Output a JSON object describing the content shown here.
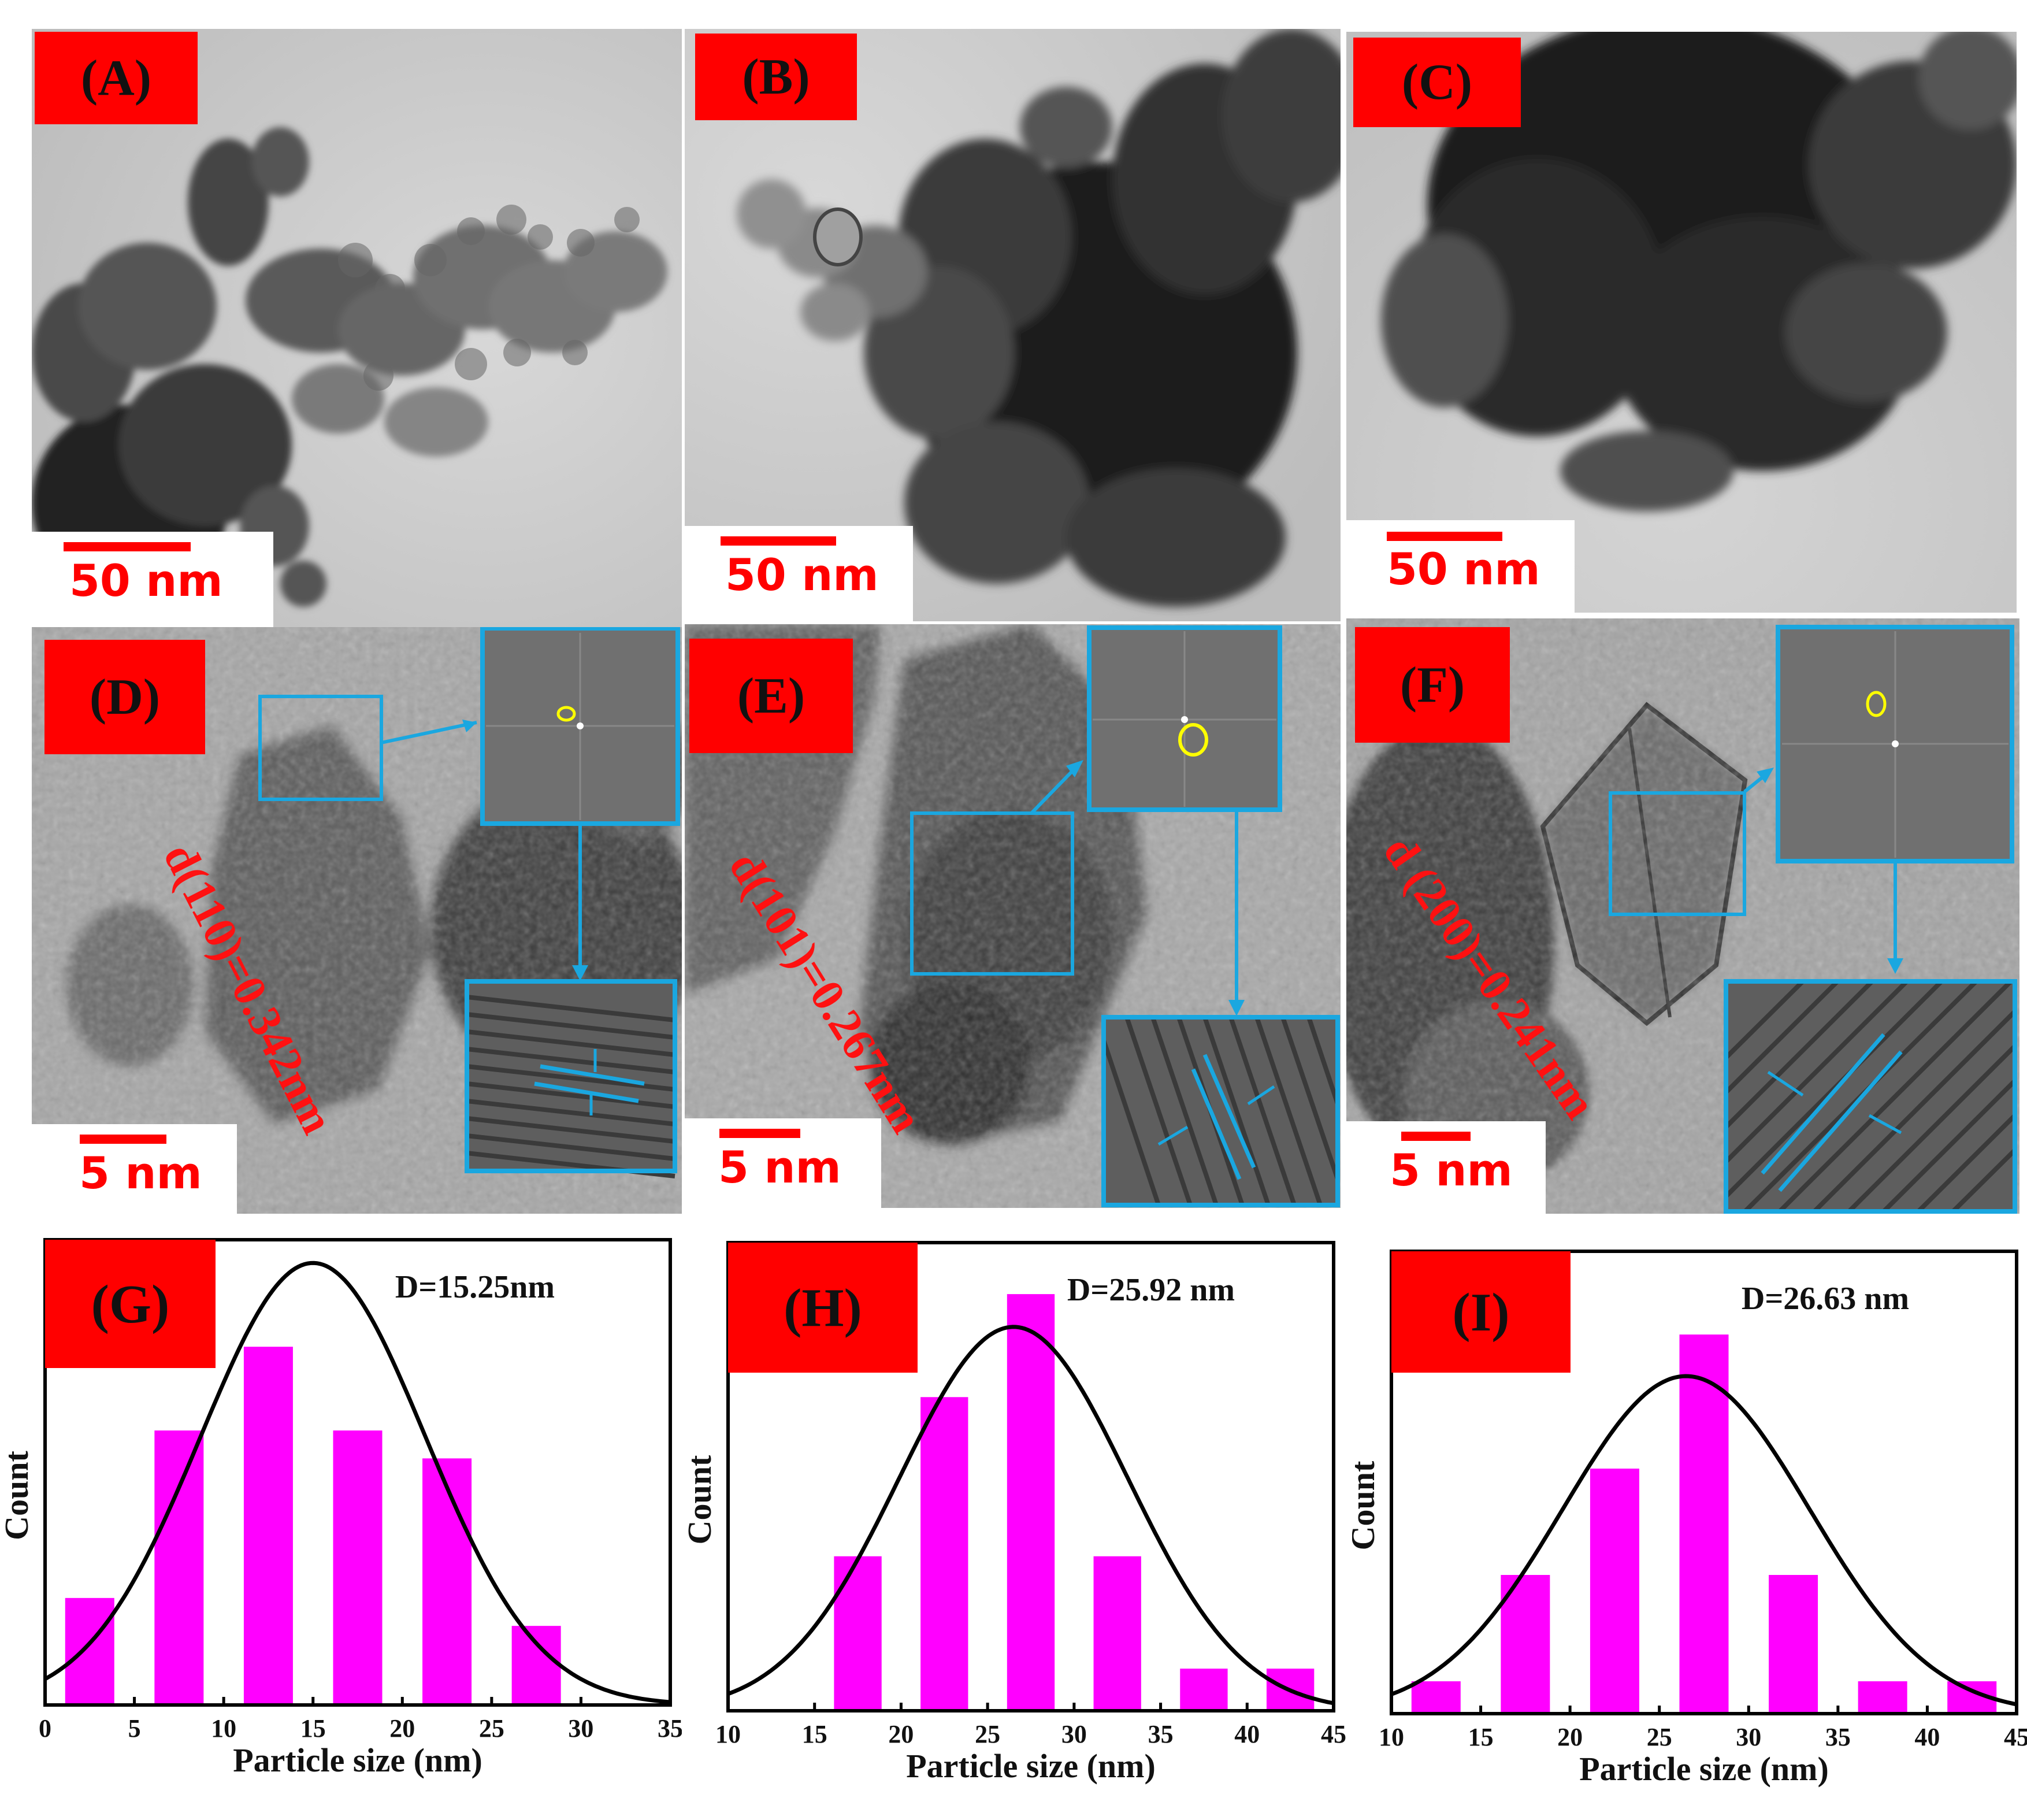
{
  "panels": {
    "A": {
      "label": "(A)",
      "scale": "50 nm"
    },
    "B": {
      "label": "(B)",
      "scale": "50 nm"
    },
    "C": {
      "label": "(C)",
      "scale": "50 nm"
    },
    "D": {
      "label": "(D)",
      "scale": "5 nm",
      "dspacing": "d(110)=0.342nm"
    },
    "E": {
      "label": "(E)",
      "scale": "5 nm",
      "dspacing": "d(101)=0.267nm"
    },
    "F": {
      "label": "(F)",
      "scale": "5 nm",
      "dspacing": "d (200)=0.241nm"
    }
  },
  "colors": {
    "label_bg": "#ff0000",
    "scale": "#ff0000",
    "inset_frame": "#1aa7e0",
    "fft_ring": "#ffff00",
    "bars": "#ff00ff",
    "fit": "#000000"
  },
  "chart_data": [
    {
      "panel": "(G)",
      "type": "bar",
      "annotation": "D=15.25nm",
      "xlabel": "Particle size (nm)",
      "ylabel": "Count",
      "xlim": [
        0,
        35
      ],
      "xticks": [
        "0",
        "5",
        "10",
        "15",
        "20",
        "25",
        "30",
        "35"
      ],
      "bars_x": [
        2.5,
        7.5,
        12.5,
        17.5,
        22.5,
        27.5
      ],
      "values": [
        0.23,
        0.59,
        0.77,
        0.59,
        0.53,
        0.17
      ],
      "ylim": [
        0,
        1
      ],
      "fit": {
        "mean": 15.0,
        "sigma": 6.3,
        "peak": 0.95,
        "baseline": 0.0
      }
    },
    {
      "panel": "(H)",
      "type": "bar",
      "annotation": "D=25.92 nm",
      "xlabel": "Particle size (nm)",
      "ylabel": "Count",
      "xlim": [
        10,
        45
      ],
      "xticks": [
        "10",
        "15",
        "20",
        "25",
        "30",
        "35",
        "40",
        "45"
      ],
      "bars_x": [
        17.5,
        22.5,
        27.5,
        32.5,
        37.5,
        42.5
      ],
      "values": [
        0.33,
        0.67,
        0.89,
        0.33,
        0.09,
        0.09
      ],
      "ylim": [
        0,
        1
      ],
      "fit": {
        "mean": 26.5,
        "sigma": 6.6,
        "peak": 0.82,
        "baseline": 0.0
      }
    },
    {
      "panel": "(I)",
      "type": "bar",
      "annotation": "D=26.63 nm",
      "xlabel": "Particle size (nm)",
      "ylabel": "Count",
      "xlim": [
        10,
        45
      ],
      "xticks": [
        "10",
        "15",
        "20",
        "25",
        "30",
        "35",
        "40",
        "45"
      ],
      "bars_x": [
        12.5,
        17.5,
        22.5,
        27.5,
        32.5,
        37.5,
        42.5
      ],
      "values": [
        0.07,
        0.3,
        0.53,
        0.82,
        0.3,
        0.07,
        0.07
      ],
      "ylim": [
        0,
        1
      ],
      "fit": {
        "mean": 26.5,
        "sigma": 6.9,
        "peak": 0.73,
        "baseline": 0.0
      }
    }
  ]
}
